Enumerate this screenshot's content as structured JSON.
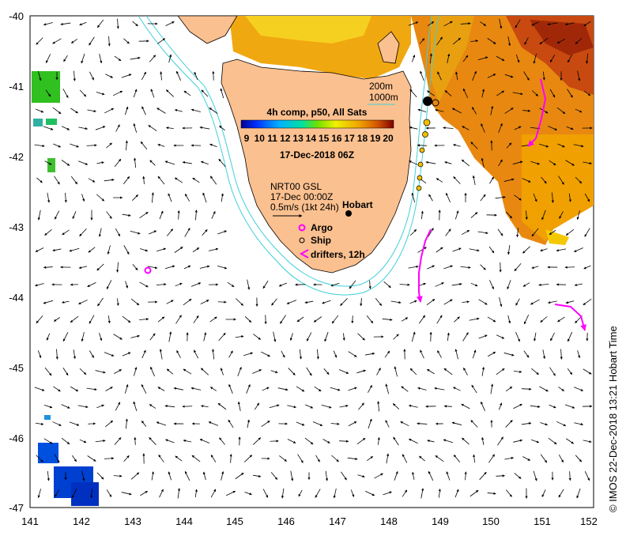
{
  "map": {
    "lon_range": [
      141,
      152
    ],
    "lat_range": [
      -47,
      -40
    ],
    "x_ticks": [
      "141",
      "142",
      "143",
      "144",
      "145",
      "146",
      "147",
      "148",
      "149",
      "150",
      "151",
      "152"
    ],
    "y_ticks": [
      "-40",
      "-41",
      "-42",
      "-43",
      "-44",
      "-45",
      "-46",
      "-47"
    ],
    "sst_comp_title": "4h comp, p50, All Sats",
    "colorbar_labels": [
      "9",
      "10",
      "11",
      "12",
      "13",
      "14",
      "15",
      "16",
      "17",
      "18",
      "19",
      "20"
    ],
    "date_label": "17-Dec-2018 06Z",
    "isobath_labels": [
      "200m",
      "1000m"
    ],
    "current_legend": {
      "line1": "NRT00 GSL",
      "line2": "17-Dec 00:00Z",
      "line3": "0.5m/s (1kt 24h)"
    },
    "city_label": "Hobart",
    "legend_argo": "Argo",
    "legend_ship": "Ship",
    "legend_drifters": "drifters, 12h",
    "credit": "© IMOS 22-Dec-2018 13:21 Hobart Time",
    "colors": {
      "land": "#fbc08f",
      "isobath": "#3fd0d8",
      "drifter": "#ff00ff",
      "sst_warm": "#e8a000",
      "sst_cool": "#0050e0"
    }
  }
}
